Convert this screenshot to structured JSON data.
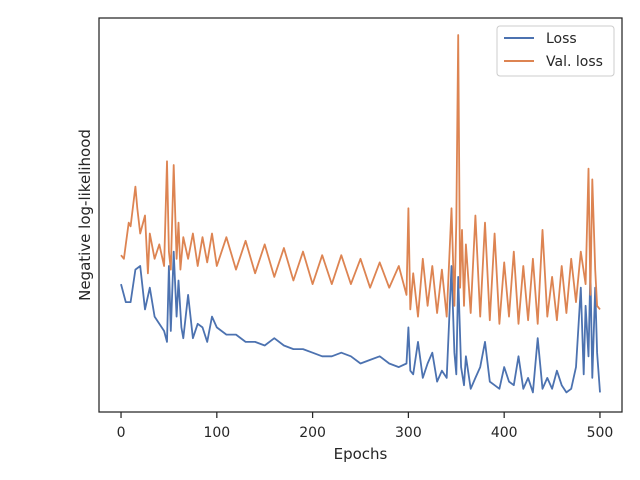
{
  "chart_data": {
    "type": "line",
    "xlabel": "Epochs",
    "ylabel": "Negative log-likelihood",
    "xlim": [
      -23,
      523
    ],
    "ylim": [
      0,
      1
    ],
    "xticks": [
      0,
      100,
      200,
      300,
      400,
      500
    ],
    "yticks_shown": false,
    "grid": false,
    "legend_position": "top-right",
    "series": [
      {
        "name": "Loss",
        "color": "#4c72b0",
        "x": [
          0,
          5,
          10,
          15,
          20,
          25,
          30,
          35,
          40,
          45,
          48,
          50,
          52,
          55,
          58,
          60,
          63,
          65,
          70,
          75,
          80,
          85,
          90,
          95,
          100,
          110,
          120,
          130,
          140,
          150,
          160,
          170,
          180,
          190,
          200,
          210,
          220,
          230,
          240,
          250,
          260,
          270,
          280,
          290,
          298,
          300,
          302,
          305,
          310,
          315,
          320,
          325,
          330,
          335,
          340,
          345,
          348,
          350,
          352,
          355,
          358,
          360,
          365,
          370,
          375,
          380,
          385,
          390,
          395,
          400,
          405,
          410,
          415,
          420,
          425,
          430,
          435,
          440,
          445,
          450,
          455,
          460,
          465,
          470,
          475,
          480,
          483,
          485,
          488,
          490,
          492,
          495,
          497,
          500
        ],
        "y": [
          0.31,
          0.26,
          0.26,
          0.35,
          0.36,
          0.24,
          0.3,
          0.22,
          0.2,
          0.18,
          0.15,
          0.36,
          0.18,
          0.4,
          0.22,
          0.32,
          0.19,
          0.16,
          0.28,
          0.16,
          0.2,
          0.19,
          0.15,
          0.22,
          0.19,
          0.17,
          0.17,
          0.15,
          0.15,
          0.14,
          0.16,
          0.14,
          0.13,
          0.13,
          0.12,
          0.11,
          0.11,
          0.12,
          0.11,
          0.09,
          0.1,
          0.11,
          0.09,
          0.08,
          0.09,
          0.19,
          0.07,
          0.06,
          0.15,
          0.05,
          0.09,
          0.12,
          0.04,
          0.07,
          0.05,
          0.36,
          0.12,
          0.06,
          0.33,
          0.08,
          0.03,
          0.11,
          0.02,
          0.05,
          0.08,
          0.15,
          0.04,
          0.03,
          0.02,
          0.08,
          0.04,
          0.03,
          0.11,
          0.02,
          0.05,
          0.01,
          0.16,
          0.02,
          0.05,
          0.02,
          0.07,
          0.03,
          0.01,
          0.02,
          0.08,
          0.3,
          0.06,
          0.25,
          0.11,
          0.35,
          0.05,
          0.3,
          0.12,
          0.01
        ]
      },
      {
        "name": "Val. loss",
        "color": "#dd8452",
        "x": [
          0,
          3,
          5,
          8,
          10,
          15,
          17,
          20,
          25,
          28,
          30,
          35,
          40,
          45,
          48,
          50,
          52,
          55,
          58,
          60,
          62,
          65,
          70,
          75,
          80,
          85,
          90,
          95,
          100,
          110,
          120,
          130,
          140,
          150,
          160,
          170,
          180,
          190,
          200,
          210,
          220,
          230,
          240,
          250,
          260,
          270,
          280,
          290,
          298,
          300,
          302,
          305,
          310,
          315,
          320,
          325,
          330,
          335,
          340,
          345,
          348,
          350,
          352,
          354,
          356,
          358,
          360,
          365,
          370,
          375,
          380,
          385,
          390,
          395,
          400,
          405,
          410,
          415,
          420,
          425,
          430,
          435,
          440,
          445,
          450,
          455,
          460,
          465,
          470,
          475,
          480,
          485,
          488,
          490,
          492,
          495,
          497,
          500
        ],
        "y": [
          0.39,
          0.38,
          0.42,
          0.48,
          0.47,
          0.58,
          0.52,
          0.45,
          0.5,
          0.34,
          0.45,
          0.38,
          0.42,
          0.36,
          0.65,
          0.4,
          0.35,
          0.64,
          0.38,
          0.48,
          0.35,
          0.44,
          0.38,
          0.45,
          0.36,
          0.44,
          0.37,
          0.45,
          0.36,
          0.44,
          0.35,
          0.43,
          0.34,
          0.42,
          0.33,
          0.41,
          0.32,
          0.4,
          0.31,
          0.39,
          0.31,
          0.39,
          0.31,
          0.38,
          0.3,
          0.37,
          0.3,
          0.36,
          0.28,
          0.52,
          0.24,
          0.34,
          0.22,
          0.38,
          0.25,
          0.36,
          0.23,
          0.35,
          0.22,
          0.52,
          0.25,
          0.48,
          1.0,
          0.3,
          0.46,
          0.25,
          0.42,
          0.23,
          0.5,
          0.22,
          0.48,
          0.21,
          0.45,
          0.2,
          0.37,
          0.22,
          0.4,
          0.2,
          0.36,
          0.21,
          0.38,
          0.2,
          0.46,
          0.22,
          0.33,
          0.21,
          0.36,
          0.23,
          0.38,
          0.26,
          0.4,
          0.31,
          0.63,
          0.28,
          0.6,
          0.35,
          0.25,
          0.24
        ]
      }
    ]
  }
}
